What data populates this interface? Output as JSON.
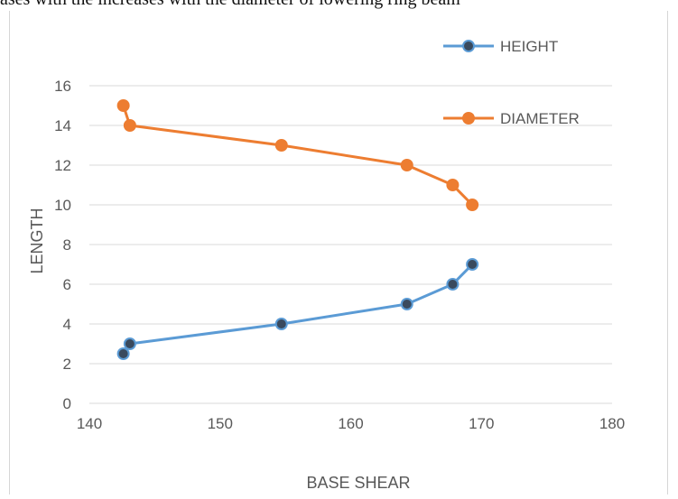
{
  "page": {
    "top_caption": "ases with the increases with the diameter of lowering ring beam"
  },
  "colors": {
    "height": "#5b9bd5",
    "diameter": "#ed7d31",
    "marker_fill_height": "#3a4a5e",
    "grid": "#d9d9d9",
    "text": "#595959"
  },
  "chart_data": {
    "type": "line",
    "title": "",
    "xlabel": "BASE SHEAR",
    "ylabel": "LENGTH",
    "xlim": [
      140,
      180
    ],
    "ylim": [
      0,
      16
    ],
    "xticks": [
      "140",
      "150",
      "160",
      "170",
      "180"
    ],
    "yticks": [
      "0",
      "2",
      "4",
      "6",
      "8",
      "10",
      "12",
      "14",
      "16"
    ],
    "grid": "horizontal",
    "legend_position": "top-right",
    "series": [
      {
        "name": "HEIGHT",
        "color": "#5b9bd5",
        "x": [
          142.6,
          143.1,
          154.7,
          164.3,
          167.8,
          169.3
        ],
        "y": [
          2.5,
          3,
          4,
          5,
          6,
          7
        ]
      },
      {
        "name": "DIAMETER",
        "color": "#ed7d31",
        "x": [
          142.6,
          143.1,
          154.7,
          164.3,
          167.8,
          169.3
        ],
        "y": [
          15,
          14,
          13,
          12,
          11,
          10
        ]
      }
    ]
  }
}
